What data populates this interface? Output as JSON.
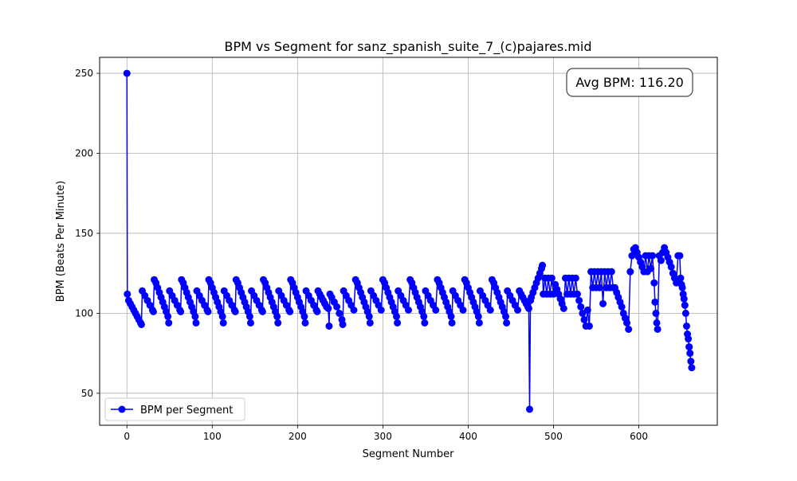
{
  "chart_data": {
    "type": "line",
    "title": "BPM vs Segment for sanz_spanish_suite_7_(c)pajares.mid",
    "xlabel": "Segment Number",
    "ylabel": "BPM (Beats Per Minute)",
    "xlim": [
      -32,
      692
    ],
    "ylim": [
      30,
      260
    ],
    "xticks": [
      0,
      100,
      200,
      300,
      400,
      500,
      600
    ],
    "yticks": [
      50,
      100,
      150,
      200,
      250
    ],
    "grid": true,
    "legend": {
      "position": "lower-left",
      "entries": [
        "BPM per Segment"
      ]
    },
    "annotation": "Avg BPM: 116.20",
    "series": [
      {
        "name": "BPM per Segment",
        "color": "#0000ff",
        "marker": "circle",
        "x": [
          0,
          0.5,
          2,
          4,
          6,
          8,
          10,
          12,
          14,
          16,
          17,
          18,
          21,
          24,
          27,
          30,
          31,
          32,
          34,
          36,
          38,
          40,
          42,
          44,
          46,
          48,
          49,
          50,
          53,
          56,
          59,
          62,
          63,
          64,
          66,
          68,
          70,
          72,
          74,
          76,
          78,
          80,
          81,
          82,
          85,
          88,
          91,
          94,
          95,
          96,
          98,
          100,
          102,
          104,
          106,
          108,
          110,
          112,
          113,
          114,
          117,
          120,
          123,
          126,
          127,
          128,
          130,
          132,
          134,
          136,
          138,
          140,
          142,
          144,
          145,
          146,
          149,
          152,
          155,
          158,
          159,
          160,
          162,
          164,
          166,
          168,
          170,
          172,
          174,
          176,
          177,
          178,
          181,
          184,
          187,
          190,
          191,
          192,
          194,
          196,
          198,
          200,
          202,
          204,
          206,
          208,
          209,
          210,
          213,
          216,
          219,
          222,
          223,
          224,
          226,
          228,
          230,
          232,
          234,
          236,
          237,
          238,
          240,
          243,
          246,
          249,
          252,
          253,
          254,
          257,
          260,
          263,
          266,
          268,
          270,
          272,
          274,
          276,
          278,
          280,
          282,
          284,
          285,
          286,
          289,
          292,
          295,
          298,
          300,
          302,
          304,
          306,
          308,
          310,
          312,
          314,
          316,
          317,
          318,
          321,
          324,
          327,
          330,
          332,
          334,
          336,
          338,
          340,
          342,
          344,
          346,
          348,
          349,
          350,
          353,
          356,
          359,
          362,
          364,
          366,
          368,
          370,
          372,
          374,
          376,
          378,
          380,
          381,
          382,
          385,
          388,
          391,
          394,
          396,
          398,
          400,
          402,
          404,
          406,
          408,
          410,
          412,
          413,
          414,
          417,
          420,
          423,
          426,
          428,
          430,
          432,
          434,
          436,
          438,
          440,
          442,
          444,
          445,
          446,
          449,
          452,
          455,
          458,
          460,
          462,
          464,
          466,
          468,
          470,
          471,
          472,
          473,
          474,
          476,
          478,
          480,
          482,
          484,
          486,
          487,
          488,
          490,
          492,
          494,
          496,
          498,
          500,
          502,
          504,
          506,
          508,
          510,
          512,
          514,
          516,
          518,
          520,
          522,
          524,
          526,
          528,
          530,
          532,
          534,
          536,
          538,
          540,
          542,
          544,
          546,
          548,
          550,
          552,
          554,
          556,
          558,
          560,
          562,
          564,
          566,
          568,
          570,
          572,
          574,
          576,
          578,
          580,
          582,
          584,
          586,
          588,
          590,
          592,
          594,
          596,
          598,
          600,
          602,
          604,
          606,
          608,
          610,
          612,
          614,
          616,
          618,
          619,
          620,
          621,
          622,
          624,
          626,
          628,
          630,
          632,
          634,
          636,
          638,
          640,
          642,
          644,
          646,
          648,
          649,
          650,
          651,
          652,
          653,
          654,
          655,
          656,
          657,
          658,
          659
        ],
        "y": [
          250,
          112,
          108,
          106,
          104,
          102,
          100,
          98,
          96,
          94,
          93,
          114,
          111,
          108,
          105,
          102,
          101,
          121,
          119,
          116,
          113,
          110,
          107,
          104,
          101,
          98,
          94,
          114,
          111,
          108,
          105,
          102,
          101,
          121,
          119,
          116,
          113,
          110,
          107,
          104,
          101,
          98,
          94,
          114,
          111,
          108,
          105,
          102,
          101,
          121,
          119,
          116,
          113,
          110,
          107,
          104,
          101,
          98,
          94,
          114,
          111,
          108,
          105,
          102,
          101,
          121,
          119,
          116,
          113,
          110,
          107,
          104,
          101,
          98,
          94,
          114,
          111,
          108,
          105,
          102,
          101,
          121,
          119,
          116,
          113,
          110,
          107,
          104,
          101,
          98,
          94,
          114,
          111,
          108,
          105,
          102,
          101,
          121,
          119,
          116,
          113,
          110,
          107,
          104,
          101,
          98,
          94,
          114,
          111,
          108,
          105,
          102,
          101,
          114,
          112,
          110,
          108,
          106,
          104,
          103,
          92,
          112,
          110,
          107,
          104,
          100,
          96,
          93,
          114,
          111,
          108,
          105,
          102,
          121,
          119,
          116,
          113,
          110,
          107,
          104,
          101,
          98,
          94,
          114,
          111,
          108,
          105,
          102,
          121,
          119,
          116,
          113,
          110,
          107,
          104,
          101,
          98,
          94,
          114,
          111,
          108,
          105,
          102,
          121,
          119,
          116,
          113,
          110,
          107,
          104,
          101,
          98,
          94,
          114,
          111,
          108,
          105,
          102,
          121,
          119,
          116,
          113,
          110,
          107,
          104,
          101,
          98,
          94,
          114,
          111,
          108,
          105,
          102,
          121,
          119,
          116,
          113,
          110,
          107,
          104,
          101,
          98,
          94,
          114,
          111,
          108,
          105,
          102,
          121,
          119,
          116,
          113,
          110,
          107,
          104,
          101,
          98,
          94,
          114,
          111,
          108,
          105,
          102,
          114,
          112,
          110,
          108,
          106,
          104,
          103,
          40,
          108,
          110,
          113,
          116,
          119,
          122,
          125,
          128,
          130,
          112,
          122,
          112,
          122,
          112,
          122,
          112,
          118,
          115,
          112,
          109,
          106,
          103,
          122,
          112,
          122,
          112,
          122,
          112,
          122,
          112,
          108,
          104,
          100,
          96,
          92,
          102,
          92,
          126,
          116,
          126,
          116,
          126,
          116,
          126,
          106,
          126,
          116,
          126,
          116,
          126,
          116,
          116,
          113,
          110,
          107,
          104,
          100,
          97,
          94,
          90,
          126,
          136,
          140,
          141,
          138,
          135,
          132,
          129,
          126,
          136,
          126,
          136,
          128,
          136,
          119,
          107,
          100,
          94,
          90,
          136,
          133,
          138,
          141,
          138,
          135,
          132,
          129,
          125,
          122,
          119,
          136,
          136,
          122,
          118,
          116,
          112,
          109,
          105,
          100,
          92,
          87,
          84,
          79
        ]
      },
      {
        "name": "",
        "color": "#0000ff",
        "marker": "circle",
        "x": [
          659,
          660,
          661,
          662
        ],
        "y": [
          79,
          75,
          70,
          66
        ]
      }
    ]
  }
}
